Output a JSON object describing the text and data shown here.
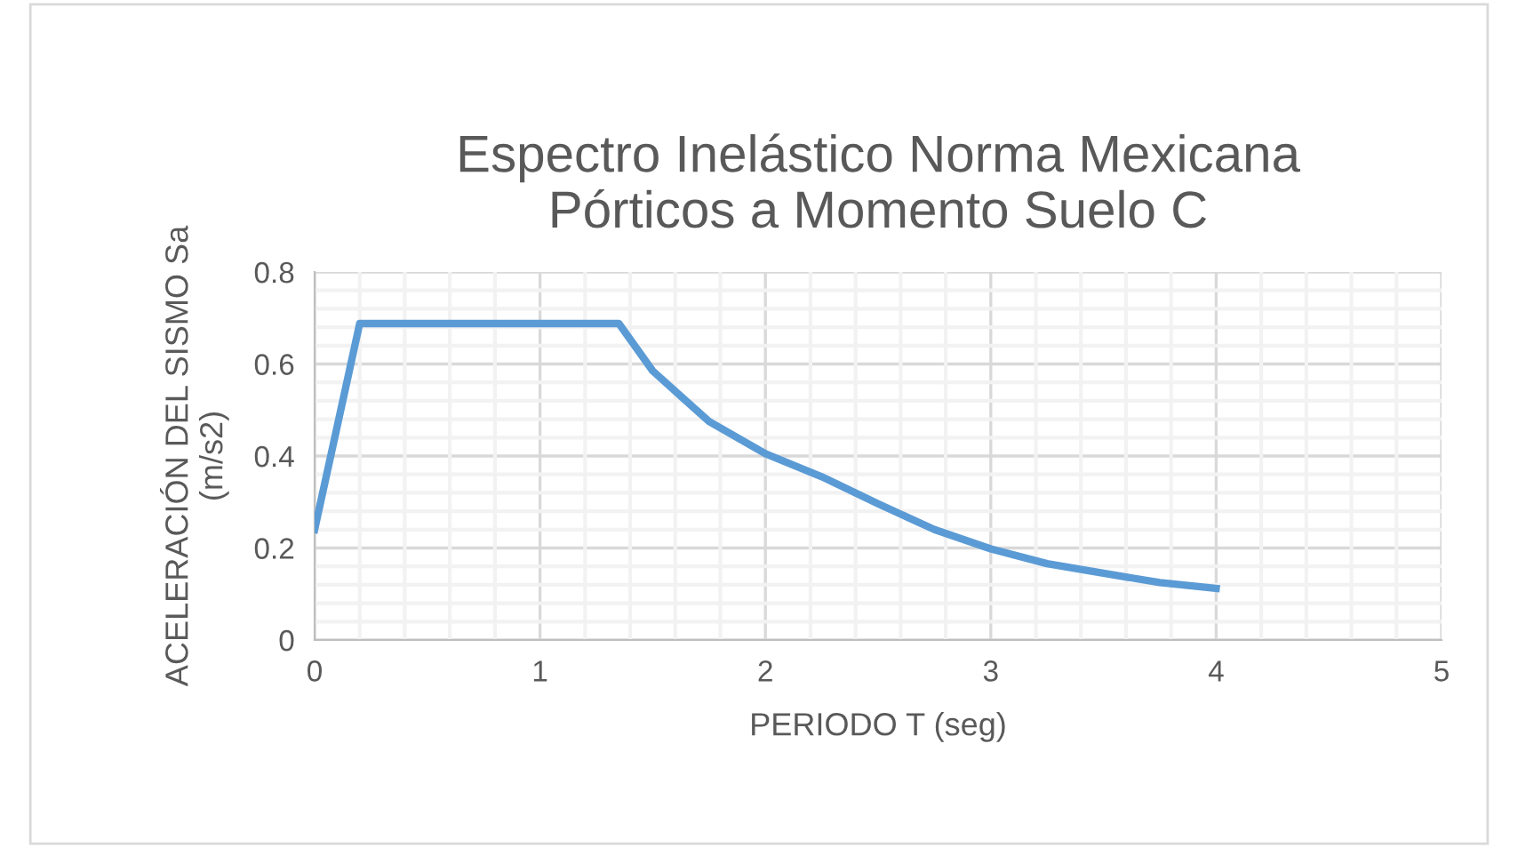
{
  "chart_data": {
    "type": "line",
    "title": "Espectro Inelástico Norma Mexicana\nPórticos a Momento Suelo C",
    "xlabel": "PERIODO T (seg)",
    "ylabel": "ACELERACIÓN DEL SISMO Sa\n(m/s2)",
    "series": [
      {
        "color": "#5b9bd5",
        "x": [
          0,
          0.2,
          1.35,
          1.5,
          1.75,
          2,
          2.25,
          2.5,
          2.75,
          3,
          3.25,
          3.5,
          3.75,
          4
        ],
        "values": [
          0.24,
          0.688,
          0.688,
          0.585,
          0.475,
          0.405,
          0.355,
          0.296,
          0.24,
          0.198,
          0.166,
          0.145,
          0.125,
          0.112
        ]
      }
    ],
    "xlim": [
      0,
      5
    ],
    "xticks": [
      0,
      1,
      2,
      3,
      4,
      5
    ],
    "ylim": [
      0,
      0.8
    ],
    "yticks": [
      0,
      0.2,
      0.4,
      0.6,
      0.8
    ],
    "grid": true,
    "marker": "none",
    "line_style": "solid"
  }
}
